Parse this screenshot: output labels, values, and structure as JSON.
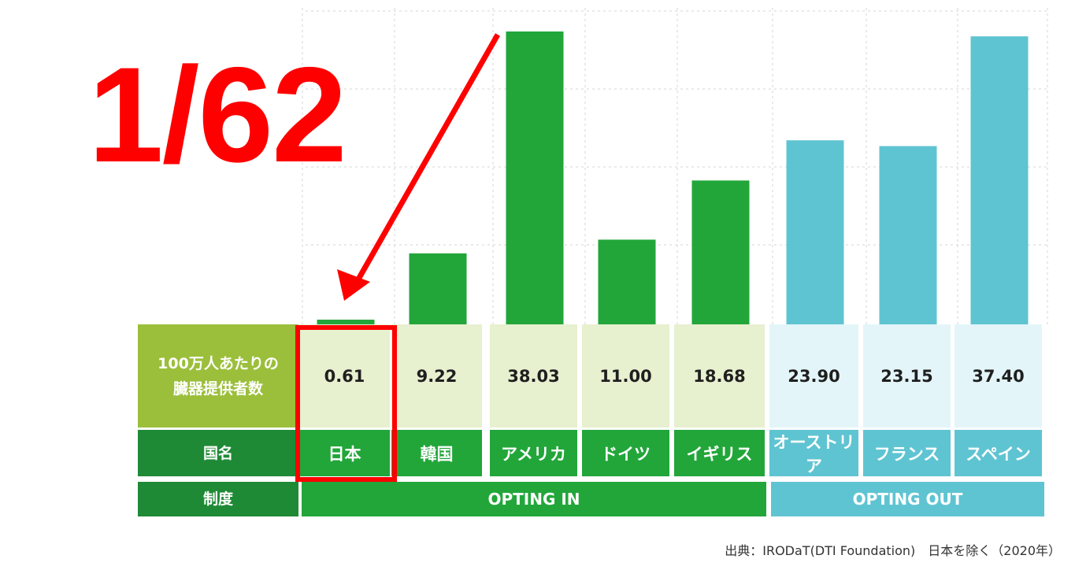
{
  "chart_data": {
    "type": "bar",
    "categories": [
      "日本",
      "韓国",
      "アメリカ",
      "ドイツ",
      "イギリス",
      "オーストリア",
      "フランス",
      "スペイン"
    ],
    "values": [
      0.61,
      9.22,
      38.03,
      11.0,
      18.68,
      23.9,
      23.15,
      37.4
    ],
    "value_labels": [
      "0.61",
      "9.22",
      "38.03",
      "11.00",
      "18.68",
      "23.90",
      "23.15",
      "37.40"
    ],
    "systems": [
      "OPTING IN",
      "OPTING IN",
      "OPTING IN",
      "OPTING IN",
      "OPTING IN",
      "OPTING OUT",
      "OPTING OUT",
      "OPTING OUT"
    ],
    "ylim": [
      0,
      40
    ],
    "grid": true,
    "highlighted_category": "日本"
  },
  "table": {
    "row_header_value": "100万人あたりの臓器提供者数",
    "row_header_value_line1": "100万人あたりの",
    "row_header_value_line2": "臓器提供者数",
    "row_header_country": "国名",
    "row_header_system": "制度",
    "system_groups": [
      {
        "label": "OPTING IN",
        "span": 5
      },
      {
        "label": "OPTING OUT",
        "span": 3
      }
    ]
  },
  "annotation": {
    "text": "1/62",
    "color": "#ff0000"
  },
  "source_note": "出典：IRODaT(DTI Foundation)　日本を除く（2020年）",
  "colors": {
    "opting_in_bar": "#22a63a",
    "opting_out_bar": "#5fc4d2",
    "header_light": "#9bbf3b",
    "header_dark": "#1f8a36",
    "highlight": "#ff0000"
  }
}
